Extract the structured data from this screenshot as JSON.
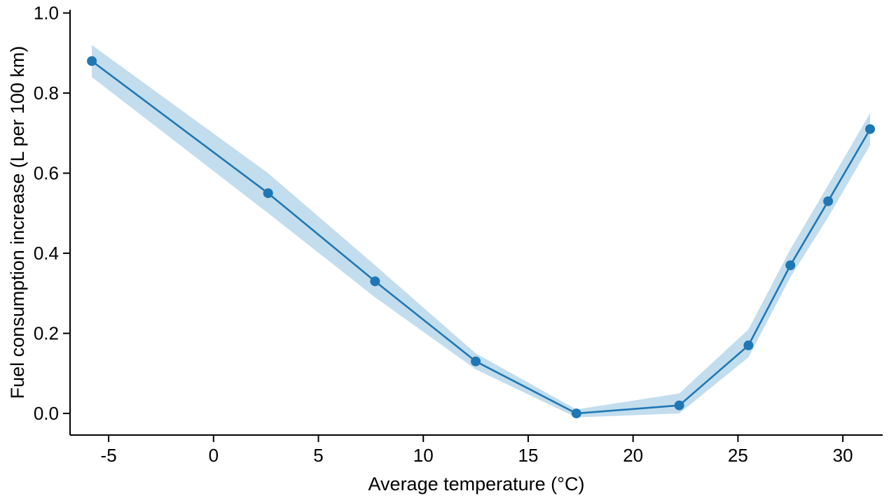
{
  "chart_data": {
    "type": "line",
    "title": "",
    "xlabel": "Average temperature (°C)",
    "ylabel": "Fuel consumption increase (L per 100 km)",
    "x": [
      -5.8,
      2.6,
      7.7,
      12.5,
      17.3,
      22.2,
      25.5,
      27.5,
      29.3,
      31.3
    ],
    "series": [
      {
        "name": "Fuel consumption increase",
        "values": [
          0.88,
          0.55,
          0.33,
          0.13,
          0.0,
          0.02,
          0.17,
          0.37,
          0.53,
          0.71
        ],
        "band_upper": [
          0.92,
          0.6,
          0.37,
          0.15,
          0.01,
          0.05,
          0.21,
          0.41,
          0.57,
          0.75
        ],
        "band_lower": [
          0.84,
          0.5,
          0.29,
          0.11,
          -0.01,
          0.0,
          0.14,
          0.34,
          0.49,
          0.67
        ]
      }
    ],
    "xticks": [
      -5,
      0,
      5,
      10,
      15,
      20,
      25,
      30
    ],
    "xtick_labels": [
      "-5",
      "0",
      "5",
      "10",
      "15",
      "20",
      "25",
      "30"
    ],
    "yticks": [
      0,
      0.2,
      0.4,
      0.6,
      0.8,
      1.0
    ],
    "ytick_labels": [
      "0.0",
      "0.2",
      "0.4",
      "0.6",
      "0.8",
      "1.0"
    ],
    "xlim": [
      -6.84,
      31.9
    ],
    "ylim": [
      -0.054,
      1.008
    ],
    "grid": false,
    "legend": null,
    "marker_radius": 7,
    "colors": {
      "line": "#1f77b4",
      "marker": "#1f77b4",
      "band": "#b3d4e8",
      "axis": "#000000",
      "text": "#000000",
      "background": "#ffffff"
    }
  }
}
